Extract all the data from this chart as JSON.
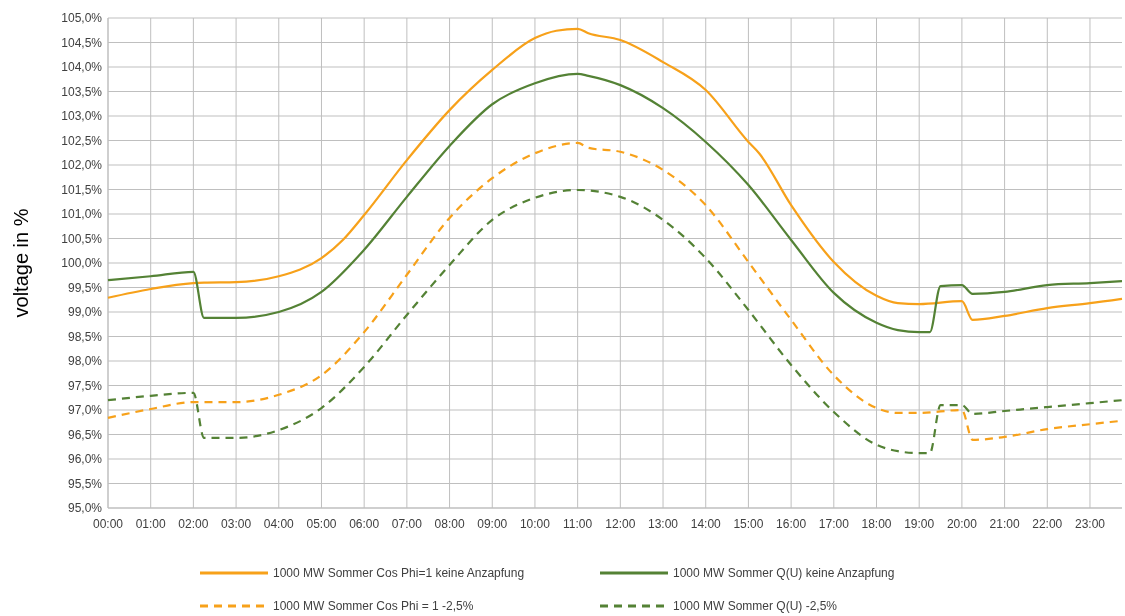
{
  "chart_data": {
    "type": "line",
    "ylabel": "voltage in %",
    "xlim": [
      0,
      23.75
    ],
    "xticks": [
      {
        "value": 0,
        "label": "00:00"
      },
      {
        "value": 1,
        "label": "01:00"
      },
      {
        "value": 2,
        "label": "02:00"
      },
      {
        "value": 3,
        "label": "03:00"
      },
      {
        "value": 4,
        "label": "04:00"
      },
      {
        "value": 5,
        "label": "05:00"
      },
      {
        "value": 6,
        "label": "06:00"
      },
      {
        "value": 7,
        "label": "07:00"
      },
      {
        "value": 8,
        "label": "08:00"
      },
      {
        "value": 9,
        "label": "09:00"
      },
      {
        "value": 10,
        "label": "10:00"
      },
      {
        "value": 11,
        "label": "11:00"
      },
      {
        "value": 12,
        "label": "12:00"
      },
      {
        "value": 13,
        "label": "13:00"
      },
      {
        "value": 14,
        "label": "14:00"
      },
      {
        "value": 15,
        "label": "15:00"
      },
      {
        "value": 16,
        "label": "16:00"
      },
      {
        "value": 17,
        "label": "17:00"
      },
      {
        "value": 18,
        "label": "18:00"
      },
      {
        "value": 19,
        "label": "19:00"
      },
      {
        "value": 20,
        "label": "20:00"
      },
      {
        "value": 21,
        "label": "21:00"
      },
      {
        "value": 22,
        "label": "22:00"
      },
      {
        "value": 23,
        "label": "23:00"
      }
    ],
    "ylim": [
      95,
      105
    ],
    "yticks": [
      {
        "value": 95,
        "label": "95,0%"
      },
      {
        "value": 95.5,
        "label": "95,5%"
      },
      {
        "value": 96,
        "label": "96,0%"
      },
      {
        "value": 96.5,
        "label": "96,5%"
      },
      {
        "value": 97,
        "label": "97,0%"
      },
      {
        "value": 97.5,
        "label": "97,5%"
      },
      {
        "value": 98,
        "label": "98,0%"
      },
      {
        "value": 98.5,
        "label": "98,5%"
      },
      {
        "value": 99,
        "label": "99,0%"
      },
      {
        "value": 99.5,
        "label": "99,5%"
      },
      {
        "value": 100,
        "label": "100,0%"
      },
      {
        "value": 100.5,
        "label": "100,5%"
      },
      {
        "value": 101,
        "label": "101,0%"
      },
      {
        "value": 101.5,
        "label": "101,5%"
      },
      {
        "value": 102,
        "label": "102,0%"
      },
      {
        "value": 102.5,
        "label": "102,5%"
      },
      {
        "value": 103,
        "label": "103,0%"
      },
      {
        "value": 103.5,
        "label": "103,5%"
      },
      {
        "value": 104,
        "label": "104,0%"
      },
      {
        "value": 104.5,
        "label": "104,5%"
      },
      {
        "value": 105,
        "label": "105,0%"
      }
    ],
    "grid": true,
    "legend": "bottom",
    "marker": "none",
    "series": [
      {
        "name": "1000 MW Sommer Cos Phi=1 keine Anzapfung",
        "color": "#f7a11a",
        "line_style": "solid",
        "x": [
          0,
          1,
          2,
          2.25,
          3,
          4,
          5,
          5.5,
          6,
          7,
          8,
          9,
          10,
          10.5,
          11,
          11.25,
          12,
          13,
          14,
          15,
          15.25,
          16,
          17,
          18,
          18.5,
          19,
          20,
          20.25,
          21,
          22,
          23,
          23.75
        ],
        "values": [
          99.29,
          99.47,
          99.59,
          99.6,
          99.61,
          99.73,
          100.1,
          100.47,
          100.98,
          102.1,
          103.12,
          103.94,
          104.59,
          104.74,
          104.78,
          104.69,
          104.55,
          104.1,
          103.53,
          102.47,
          102.24,
          101.18,
          100.02,
          99.33,
          99.18,
          99.16,
          99.22,
          98.84,
          98.92,
          99.08,
          99.18,
          99.27
        ]
      },
      {
        "name": "1000 MW Sommer Q(U) keine Anzapfung",
        "color": "#548235",
        "line_style": "solid",
        "x": [
          0,
          1,
          2,
          2.25,
          3,
          4,
          5,
          6,
          7,
          8,
          9,
          10,
          11,
          11.25,
          12,
          13,
          14,
          15,
          16,
          17,
          18,
          18.5,
          19,
          19.25,
          19.5,
          20,
          20.25,
          21,
          22,
          23,
          23.75
        ],
        "values": [
          99.65,
          99.73,
          99.82,
          98.88,
          98.88,
          99.0,
          99.41,
          100.27,
          101.35,
          102.39,
          103.24,
          103.67,
          103.86,
          103.82,
          103.63,
          103.16,
          102.47,
          101.59,
          100.47,
          99.39,
          98.78,
          98.63,
          98.59,
          98.59,
          99.53,
          99.55,
          99.37,
          99.41,
          99.55,
          99.59,
          99.63
        ]
      },
      {
        "name": "1000 MW Sommer Cos Phi = 1 -2,5%",
        "color": "#f7a11a",
        "line_style": "dashed",
        "x": [
          0,
          1,
          2,
          3,
          4,
          5,
          6,
          7,
          8,
          9,
          10,
          11,
          11.25,
          12,
          13,
          14,
          15,
          16,
          17,
          18,
          18.5,
          19,
          20,
          20.25,
          21,
          22,
          23,
          23.75
        ],
        "values": [
          96.84,
          97.02,
          97.16,
          97.16,
          97.31,
          97.71,
          98.59,
          99.76,
          100.92,
          101.73,
          102.24,
          102.45,
          102.35,
          102.27,
          101.9,
          101.18,
          100.02,
          98.84,
          97.71,
          97.04,
          96.94,
          96.94,
          97.0,
          96.39,
          96.45,
          96.61,
          96.71,
          96.78
        ]
      },
      {
        "name": "1000 MW Sommer Q(U) -2,5%",
        "color": "#548235",
        "line_style": "dashed",
        "x": [
          0,
          1,
          2,
          2.25,
          3,
          4,
          5,
          6,
          7,
          8,
          9,
          10,
          11,
          12,
          13,
          14,
          15,
          16,
          17,
          18,
          18.5,
          19,
          19.25,
          19.5,
          20,
          20.25,
          21,
          22,
          23,
          23.75
        ],
        "values": [
          97.2,
          97.29,
          97.35,
          96.43,
          96.43,
          96.59,
          97.04,
          97.88,
          98.94,
          99.96,
          100.88,
          101.33,
          101.49,
          101.35,
          100.88,
          100.1,
          99.04,
          97.92,
          96.96,
          96.29,
          96.16,
          96.12,
          96.12,
          97.1,
          97.1,
          96.92,
          96.98,
          97.06,
          97.14,
          97.2
        ]
      }
    ]
  }
}
